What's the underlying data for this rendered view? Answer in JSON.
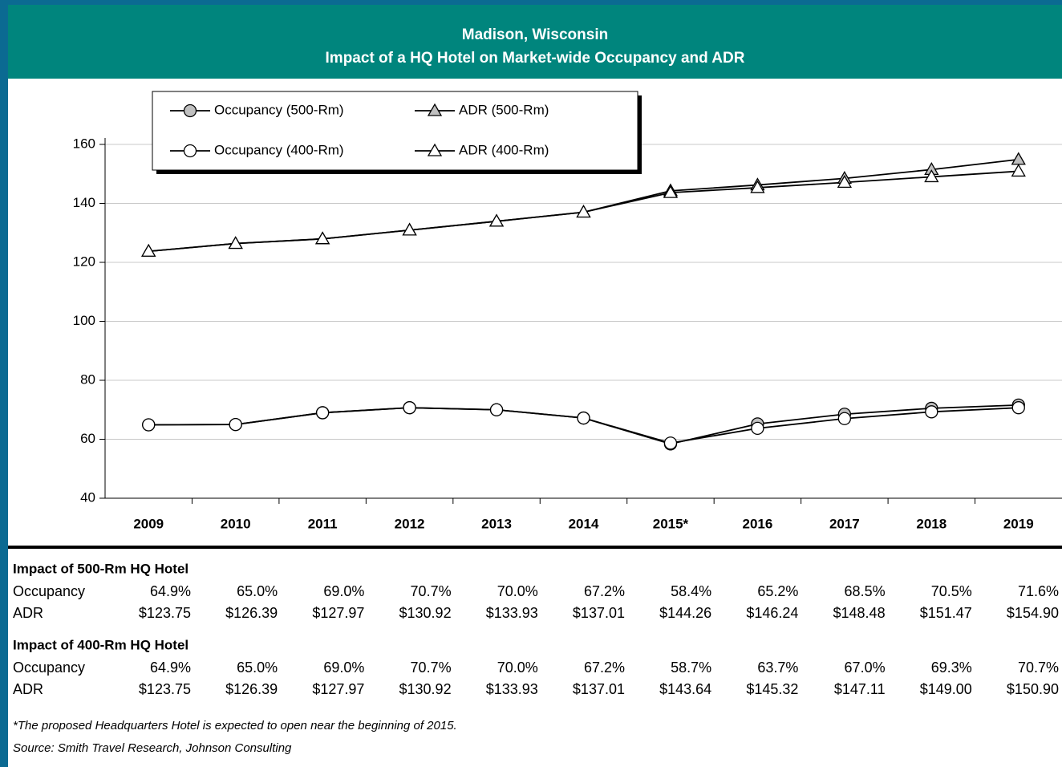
{
  "chart_data": {
    "type": "line",
    "title": "Madison, Wisconsin",
    "subtitle": "Impact of a HQ Hotel on Market-wide Occupancy and ADR",
    "categories": [
      "2009",
      "2010",
      "2011",
      "2012",
      "2013",
      "2014",
      "2015*",
      "2016",
      "2017",
      "2018",
      "2019"
    ],
    "ylim": [
      40,
      160
    ],
    "yticks": [
      40,
      60,
      80,
      100,
      120,
      140,
      160
    ],
    "grid": true,
    "legend": "top-left",
    "series": [
      {
        "name": "Occupancy (500-Rm)",
        "color": "#000000",
        "marker": "circle",
        "marker_fill": "#c0c0c0",
        "values": [
          64.9,
          65.0,
          69.0,
          70.7,
          70.0,
          67.2,
          58.4,
          65.2,
          68.5,
          70.5,
          71.6
        ],
        "value_labels": [
          "64.9%",
          "65.0%",
          "69.0%",
          "70.7%",
          "70.0%",
          "67.2%",
          "58.4%",
          "65.2%",
          "68.5%",
          "70.5%",
          "71.6%"
        ]
      },
      {
        "name": "ADR (500-Rm)",
        "color": "#000000",
        "marker": "triangle",
        "marker_fill": "#c0c0c0",
        "values": [
          123.75,
          126.39,
          127.97,
          130.92,
          133.93,
          137.01,
          144.26,
          146.24,
          148.48,
          151.47,
          154.9
        ],
        "value_labels": [
          "$123.75",
          "$126.39",
          "$127.97",
          "$130.92",
          "$133.93",
          "$137.01",
          "$144.26",
          "$146.24",
          "$148.48",
          "$151.47",
          "$154.90"
        ]
      },
      {
        "name": "Occupancy (400-Rm)",
        "color": "#000000",
        "marker": "circle",
        "marker_fill": "#ffffff",
        "values": [
          64.9,
          65.0,
          69.0,
          70.7,
          70.0,
          67.2,
          58.7,
          63.7,
          67.0,
          69.3,
          70.7
        ],
        "value_labels": [
          "64.9%",
          "65.0%",
          "69.0%",
          "70.7%",
          "70.0%",
          "67.2%",
          "58.7%",
          "63.7%",
          "67.0%",
          "69.3%",
          "70.7%"
        ]
      },
      {
        "name": "ADR (400-Rm)",
        "color": "#000000",
        "marker": "triangle",
        "marker_fill": "#ffffff",
        "values": [
          123.75,
          126.39,
          127.97,
          130.92,
          133.93,
          137.01,
          143.64,
          145.32,
          147.11,
          149.0,
          150.9
        ],
        "value_labels": [
          "$123.75",
          "$126.39",
          "$127.97",
          "$130.92",
          "$133.93",
          "$137.01",
          "$143.64",
          "$145.32",
          "$147.11",
          "$149.00",
          "$150.90"
        ]
      }
    ],
    "table": {
      "sections": [
        {
          "title": "Impact of 500-Rm HQ Hotel",
          "rows": [
            "Occupancy",
            "ADR"
          ]
        },
        {
          "title": "Impact of 400-Rm HQ Hotel",
          "rows": [
            "Occupancy",
            "ADR"
          ]
        }
      ]
    },
    "notes": [
      "*The proposed Headquarters Hotel is expected to open near the beginning of 2015.",
      "Source: Smith Travel Research, Johnson Consulting"
    ]
  }
}
